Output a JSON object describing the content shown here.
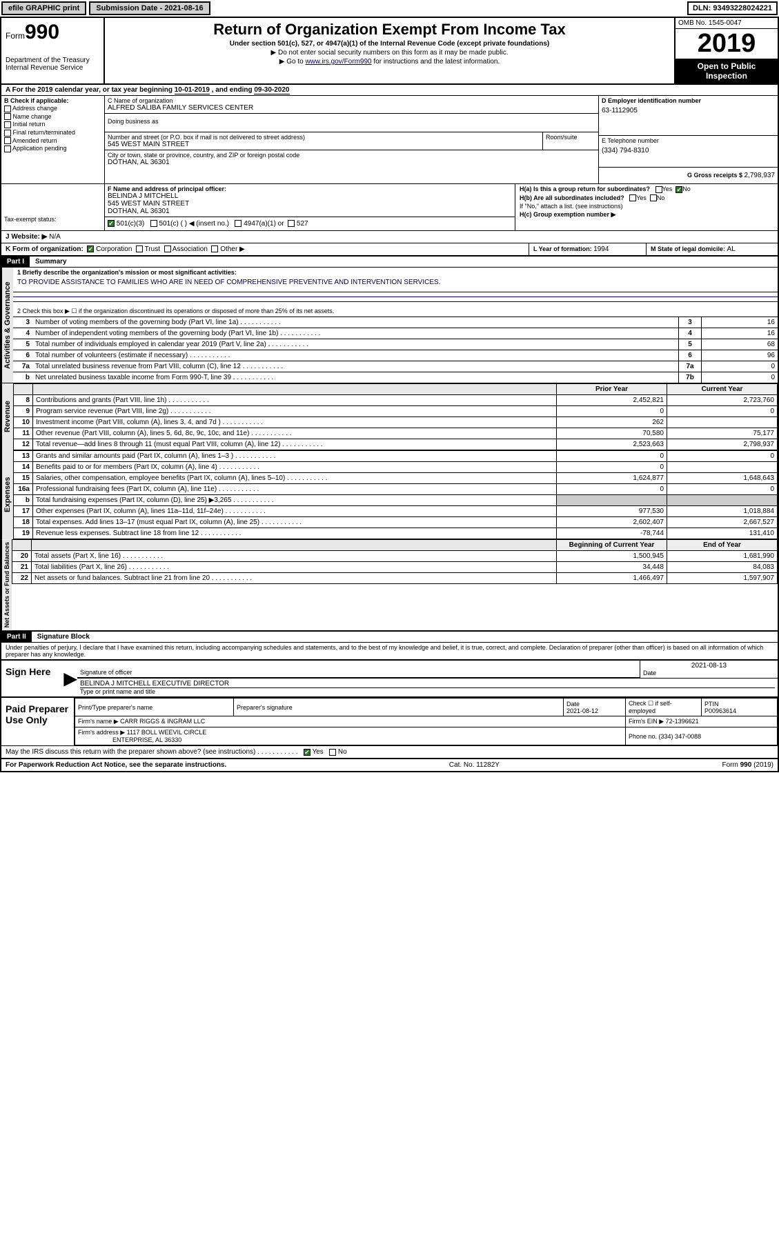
{
  "top": {
    "efile": "efile GRAPHIC print",
    "submission_label": "Submission Date - 2021-08-16",
    "dln": "DLN: 93493228024221"
  },
  "colors": {
    "link": "#003366",
    "black": "#000000",
    "sidebar": "#e8e8e8",
    "check_green": "#2a7a2a"
  },
  "header": {
    "form_word": "Form",
    "form_num": "990",
    "dept1": "Department of the Treasury",
    "dept2": "Internal Revenue Service",
    "title": "Return of Organization Exempt From Income Tax",
    "subtitle": "Under section 501(c), 527, or 4947(a)(1) of the Internal Revenue Code (except private foundations)",
    "note1": "▶ Do not enter social security numbers on this form as it may be made public.",
    "note2_pre": "▶ Go to ",
    "note2_link": "www.irs.gov/Form990",
    "note2_post": " for instructions and the latest information.",
    "omb": "OMB No. 1545-0047",
    "year": "2019",
    "open1": "Open to Public",
    "open2": "Inspection"
  },
  "period": {
    "label_a": "A For the 2019 calendar year, or tax year beginning ",
    "begin": "10-01-2019",
    "mid": " , and ending ",
    "end": "09-30-2020"
  },
  "boxB": {
    "label": "B Check if applicable:",
    "opts": [
      "Address change",
      "Name change",
      "Initial return",
      "Final return/terminated",
      "Amended return",
      "Application pending"
    ]
  },
  "boxC": {
    "name_label": "C Name of organization",
    "name": "ALFRED SALIBA FAMILY SERVICES CENTER",
    "dba_label": "Doing business as",
    "addr_label": "Number and street (or P.O. box if mail is not delivered to street address)",
    "room_label": "Room/suite",
    "street": "545 WEST MAIN STREET",
    "city_label": "City or town, state or province, country, and ZIP or foreign postal code",
    "city": "DOTHAN, AL  36301"
  },
  "boxD": {
    "label": "D Employer identification number",
    "value": "63-1112905"
  },
  "boxE": {
    "label": "E Telephone number",
    "value": "(334) 794-8310"
  },
  "boxG": {
    "label": "G Gross receipts $ ",
    "value": "2,798,937"
  },
  "boxF": {
    "label": "F Name and address of principal officer:",
    "name": "BELINDA J MITCHELL",
    "street": "545 WEST MAIN STREET",
    "city": "DOTHAN, AL  36301"
  },
  "boxH": {
    "a_label": "H(a)  Is this a group return for subordinates?",
    "a_yes": "Yes",
    "a_no": "No",
    "a_checked": "No",
    "b_label": "H(b)  Are all subordinates included?",
    "b_note": "If \"No,\" attach a list. (see instructions)",
    "c_label": "H(c)  Group exemption number ▶"
  },
  "taxexempt": {
    "label": "Tax-exempt status:",
    "opt1": "501(c)(3)",
    "opt1_checked": true,
    "opt2": "501(c) (   ) ◀ (insert no.)",
    "opt3": "4947(a)(1) or",
    "opt4": "527"
  },
  "boxJ": {
    "label": "J  Website: ▶",
    "value": "N/A"
  },
  "boxK": {
    "label": "K Form of organization:",
    "corp": "Corporation",
    "corp_checked": true,
    "trust": "Trust",
    "assoc": "Association",
    "other": "Other ▶"
  },
  "boxL": {
    "label": "L Year of formation: ",
    "value": "1994"
  },
  "boxM": {
    "label": "M State of legal domicile: ",
    "value": "AL"
  },
  "partI": {
    "bar": "Part I",
    "title": "Summary"
  },
  "summary": {
    "line1_label": "1  Briefly describe the organization's mission or most significant activities:",
    "mission": "TO PROVIDE ASSISTANCE TO FAMILIES WHO ARE IN NEED OF COMPREHENSIVE PREVENTIVE AND INTERVENTION SERVICES.",
    "line2": "2   Check this box ▶ ☐ if the organization discontinued its operations or disposed of more than 25% of its net assets.",
    "rows": [
      {
        "n": "3",
        "d": "Number of voting members of the governing body (Part VI, line 1a)",
        "box": "3",
        "v": "16"
      },
      {
        "n": "4",
        "d": "Number of independent voting members of the governing body (Part VI, line 1b)",
        "box": "4",
        "v": "16"
      },
      {
        "n": "5",
        "d": "Total number of individuals employed in calendar year 2019 (Part V, line 2a)",
        "box": "5",
        "v": "68"
      },
      {
        "n": "6",
        "d": "Total number of volunteers (estimate if necessary)",
        "box": "6",
        "v": "96"
      },
      {
        "n": "7a",
        "d": "Total unrelated business revenue from Part VIII, column (C), line 12",
        "box": "7a",
        "v": "0"
      },
      {
        "n": "b",
        "d": "Net unrelated business taxable income from Form 990-T, line 39",
        "box": "7b",
        "v": "0"
      }
    ]
  },
  "fin_header": {
    "prior": "Prior Year",
    "current": "Current Year",
    "begin": "Beginning of Current Year",
    "end": "End of Year"
  },
  "revenue": [
    {
      "n": "8",
      "d": "Contributions and grants (Part VIII, line 1h)",
      "p": "2,452,821",
      "c": "2,723,760"
    },
    {
      "n": "9",
      "d": "Program service revenue (Part VIII, line 2g)",
      "p": "0",
      "c": "0"
    },
    {
      "n": "10",
      "d": "Investment income (Part VIII, column (A), lines 3, 4, and 7d )",
      "p": "262",
      "c": ""
    },
    {
      "n": "11",
      "d": "Other revenue (Part VIII, column (A), lines 5, 6d, 8c, 9c, 10c, and 11e)",
      "p": "70,580",
      "c": "75,177"
    },
    {
      "n": "12",
      "d": "Total revenue—add lines 8 through 11 (must equal Part VIII, column (A), line 12)",
      "p": "2,523,663",
      "c": "2,798,937"
    }
  ],
  "expenses": [
    {
      "n": "13",
      "d": "Grants and similar amounts paid (Part IX, column (A), lines 1–3 )",
      "p": "0",
      "c": "0"
    },
    {
      "n": "14",
      "d": "Benefits paid to or for members (Part IX, column (A), line 4)",
      "p": "0",
      "c": ""
    },
    {
      "n": "15",
      "d": "Salaries, other compensation, employee benefits (Part IX, column (A), lines 5–10)",
      "p": "1,624,877",
      "c": "1,648,643"
    },
    {
      "n": "16a",
      "d": "Professional fundraising fees (Part IX, column (A), line 11e)",
      "p": "0",
      "c": "0"
    },
    {
      "n": "b",
      "d": "Total fundraising expenses (Part IX, column (D), line 25) ▶3,265",
      "p": "",
      "c": "",
      "shade": true
    },
    {
      "n": "17",
      "d": "Other expenses (Part IX, column (A), lines 11a–11d, 11f–24e)",
      "p": "977,530",
      "c": "1,018,884"
    },
    {
      "n": "18",
      "d": "Total expenses. Add lines 13–17 (must equal Part IX, column (A), line 25)",
      "p": "2,602,407",
      "c": "2,667,527"
    },
    {
      "n": "19",
      "d": "Revenue less expenses. Subtract line 18 from line 12",
      "p": "-78,744",
      "c": "131,410"
    }
  ],
  "netassets": [
    {
      "n": "20",
      "d": "Total assets (Part X, line 16)",
      "p": "1,500,945",
      "c": "1,681,990"
    },
    {
      "n": "21",
      "d": "Total liabilities (Part X, line 26)",
      "p": "34,448",
      "c": "84,083"
    },
    {
      "n": "22",
      "d": "Net assets or fund balances. Subtract line 21 from line 20",
      "p": "1,466,497",
      "c": "1,597,907"
    }
  ],
  "side_labels": {
    "gov": "Activities & Governance",
    "rev": "Revenue",
    "exp": "Expenses",
    "net": "Net Assets or Fund Balances"
  },
  "partII": {
    "bar": "Part II",
    "title": "Signature Block"
  },
  "perjury": "Under penalties of perjury, I declare that I have examined this return, including accompanying schedules and statements, and to the best of my knowledge and belief, it is true, correct, and complete. Declaration of preparer (other than officer) is based on all information of which preparer has any knowledge.",
  "sign": {
    "here": "Sign Here",
    "sig_label": "Signature of officer",
    "date_label": "Date",
    "date": "2021-08-13",
    "name": "BELINDA J MITCHELL  EXECUTIVE DIRECTOR",
    "name_label": "Type or print name and title"
  },
  "paid": {
    "title": "Paid Preparer Use Only",
    "h1": "Print/Type preparer's name",
    "h2": "Preparer's signature",
    "h3": "Date",
    "h3v": "2021-08-12",
    "h4": "Check ☐ if self-employed",
    "h5": "PTIN",
    "h5v": "P00963614",
    "firm_label": "Firm's name   ▶",
    "firm": "CARR RIGGS & INGRAM LLC",
    "ein_label": "Firm's EIN ▶ ",
    "ein": "72-1396621",
    "addr_label": "Firm's address ▶",
    "addr1": "1117 BOLL WEEVIL CIRCLE",
    "addr2": "ENTERPRISE, AL  36330",
    "phone_label": "Phone no. ",
    "phone": "(334) 347-0088"
  },
  "discuss": {
    "q": "May the IRS discuss this return with the preparer shown above? (see instructions)",
    "yes": "Yes",
    "no": "No",
    "yes_checked": true
  },
  "footer": {
    "left": "For Paperwork Reduction Act Notice, see the separate instructions.",
    "mid": "Cat. No. 11282Y",
    "right": "Form 990 (2019)"
  }
}
